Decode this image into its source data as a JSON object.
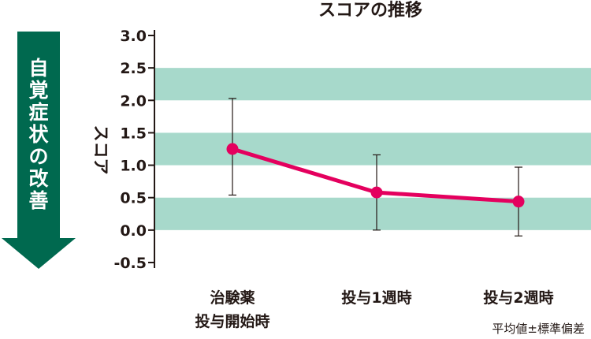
{
  "chart_data": {
    "type": "line",
    "title": "スコアの推移",
    "ylabel": "スコア",
    "side_label": "自覚症状の改善",
    "footnote": "平均値±標準偏差",
    "ylim": [
      -0.5,
      3.0
    ],
    "yticks": [
      "3.0",
      "2.5",
      "2.0",
      "1.5",
      "1.0",
      "0.5",
      "0.0",
      "-0.5"
    ],
    "categories": [
      {
        "line1": "治験薬",
        "line2": "投与開始時"
      },
      {
        "line1": "投与1週時",
        "line2": ""
      },
      {
        "line1": "投与2週時",
        "line2": ""
      }
    ],
    "series": [
      {
        "values": [
          1.25,
          0.58,
          0.44
        ],
        "err_low": [
          0.54,
          0.0,
          -0.09
        ],
        "err_high": [
          2.03,
          1.16,
          0.97
        ]
      }
    ],
    "colors": {
      "line": "#e4005e",
      "band": "#a7d9cb",
      "arrow": "#00694f",
      "axis": "#231815"
    }
  }
}
